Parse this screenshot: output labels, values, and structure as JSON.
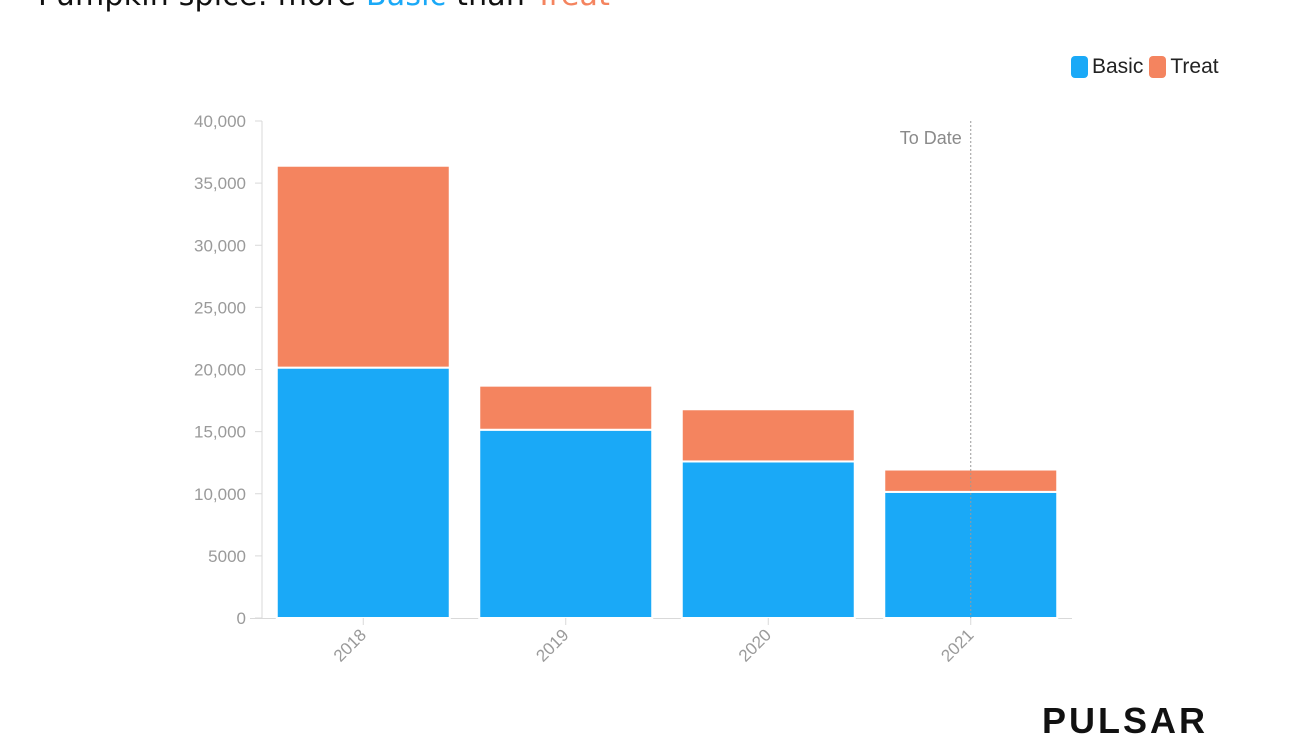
{
  "title": {
    "prefix": "Pumpkin spice: more ",
    "basic": "Basic",
    "middle": " than ",
    "treat": "Treat"
  },
  "chart_data": {
    "type": "bar",
    "stacked": true,
    "categories": [
      "2018",
      "2019",
      "2020",
      "2021"
    ],
    "series": [
      {
        "name": "Basic",
        "color": "#1aa9f7",
        "values": [
          20150,
          15150,
          12600,
          10150
        ]
      },
      {
        "name": "Treat",
        "color": "#f4845f",
        "values": [
          16250,
          3550,
          4200,
          1800
        ]
      }
    ],
    "ylim": [
      0,
      40000
    ],
    "yticks": [
      0,
      5000,
      10000,
      15000,
      20000,
      25000,
      30000,
      35000,
      40000
    ],
    "ytick_labels": [
      "0",
      "5000",
      "10,000",
      "15,000",
      "20,000",
      "25,000",
      "30,000",
      "35,000",
      "40,000"
    ],
    "annotation": {
      "label": "To Date",
      "category": "2021"
    },
    "legend_position": "top-right",
    "grid": false
  },
  "watermark": "PULSAR"
}
